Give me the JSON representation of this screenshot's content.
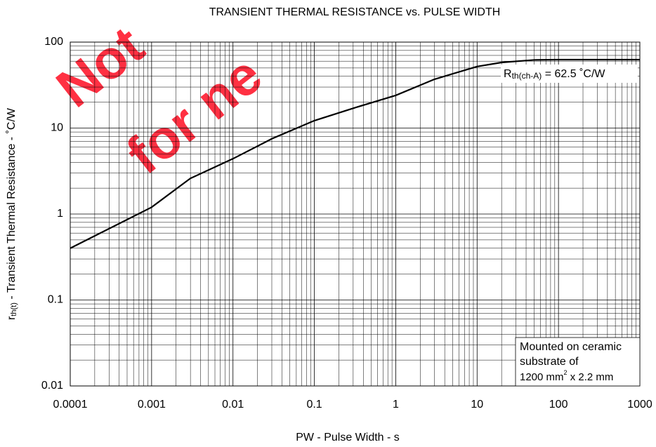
{
  "chart_data": {
    "type": "line",
    "title": "TRANSIENT THERMAL RESISTANCE vs. PULSE WIDTH",
    "x_label": "PW -  Pulse Width -  s",
    "y_label": {
      "main": "r",
      "sub": "th(t)",
      "rest": " -  Transient Thermal Resistance - ˚C/W"
    },
    "watermark": [
      "Not",
      "for ne"
    ],
    "annotation": {
      "main": "R",
      "sub": "th(ch-A)",
      "rest": " = 62.5 ˚C/W"
    },
    "note": [
      "Mounted on ceramic",
      "substrate of",
      {
        "main": "1200 mm",
        "sup": "2",
        "rest": " x  2.2 mm"
      }
    ],
    "x_log": true,
    "y_log": true,
    "grid": true,
    "minor_grid": true,
    "xlim": [
      0.0001,
      1000
    ],
    "xticks": [
      0.0001,
      0.001,
      0.01,
      0.1,
      1,
      10,
      100,
      1000
    ],
    "ylim": [
      0.01,
      100
    ],
    "yticks": [
      0.01,
      0.1,
      1,
      10,
      100
    ],
    "x": [
      0.0001,
      0.001,
      0.003,
      0.01,
      0.03,
      0.1,
      0.3,
      1,
      3,
      10,
      20,
      50,
      100,
      1000
    ],
    "series": [
      {
        "name": "rth(t)",
        "color": "#000000",
        "values": [
          0.4,
          1.2,
          2.6,
          4.4,
          7.5,
          12.2,
          17,
          24,
          37,
          52,
          58,
          62,
          62.5,
          62.5
        ]
      }
    ]
  }
}
